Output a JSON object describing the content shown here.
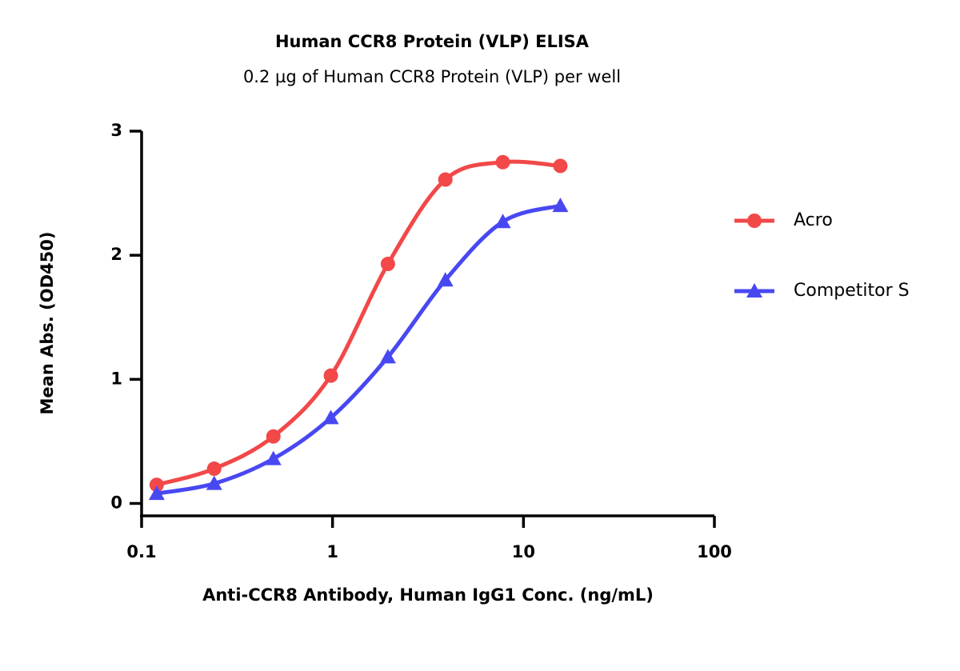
{
  "chart_data": {
    "type": "scatter",
    "title": "Human CCR8 Protein (VLP) ELISA",
    "subtitle": "0.2 µg of Human CCR8 Protein (VLP) per well",
    "x_label": "Anti-CCR8 Antibody, Human IgG1 Conc. (ng/mL)",
    "y_label": "Mean Abs. (OD450)",
    "x": [
      0.12,
      0.24,
      0.49,
      0.98,
      1.95,
      3.9,
      7.8,
      15.6
    ],
    "series": [
      {
        "name": "Acro",
        "color": "#f24848",
        "marker": "circle",
        "values": [
          0.15,
          0.28,
          0.54,
          1.03,
          1.93,
          2.61,
          2.75,
          2.72
        ]
      },
      {
        "name": "Competitor S",
        "color": "#4848f2",
        "marker": "triangle",
        "values": [
          0.08,
          0.16,
          0.36,
          0.69,
          1.18,
          1.8,
          2.27,
          2.4
        ]
      }
    ],
    "xscale": "log",
    "xlim": [
      0.1,
      100
    ],
    "xticks": [
      0.1,
      1,
      10,
      100
    ],
    "ylim": [
      -0.1,
      3
    ],
    "yticks": [
      0,
      1,
      2,
      3
    ],
    "legend": "right"
  }
}
